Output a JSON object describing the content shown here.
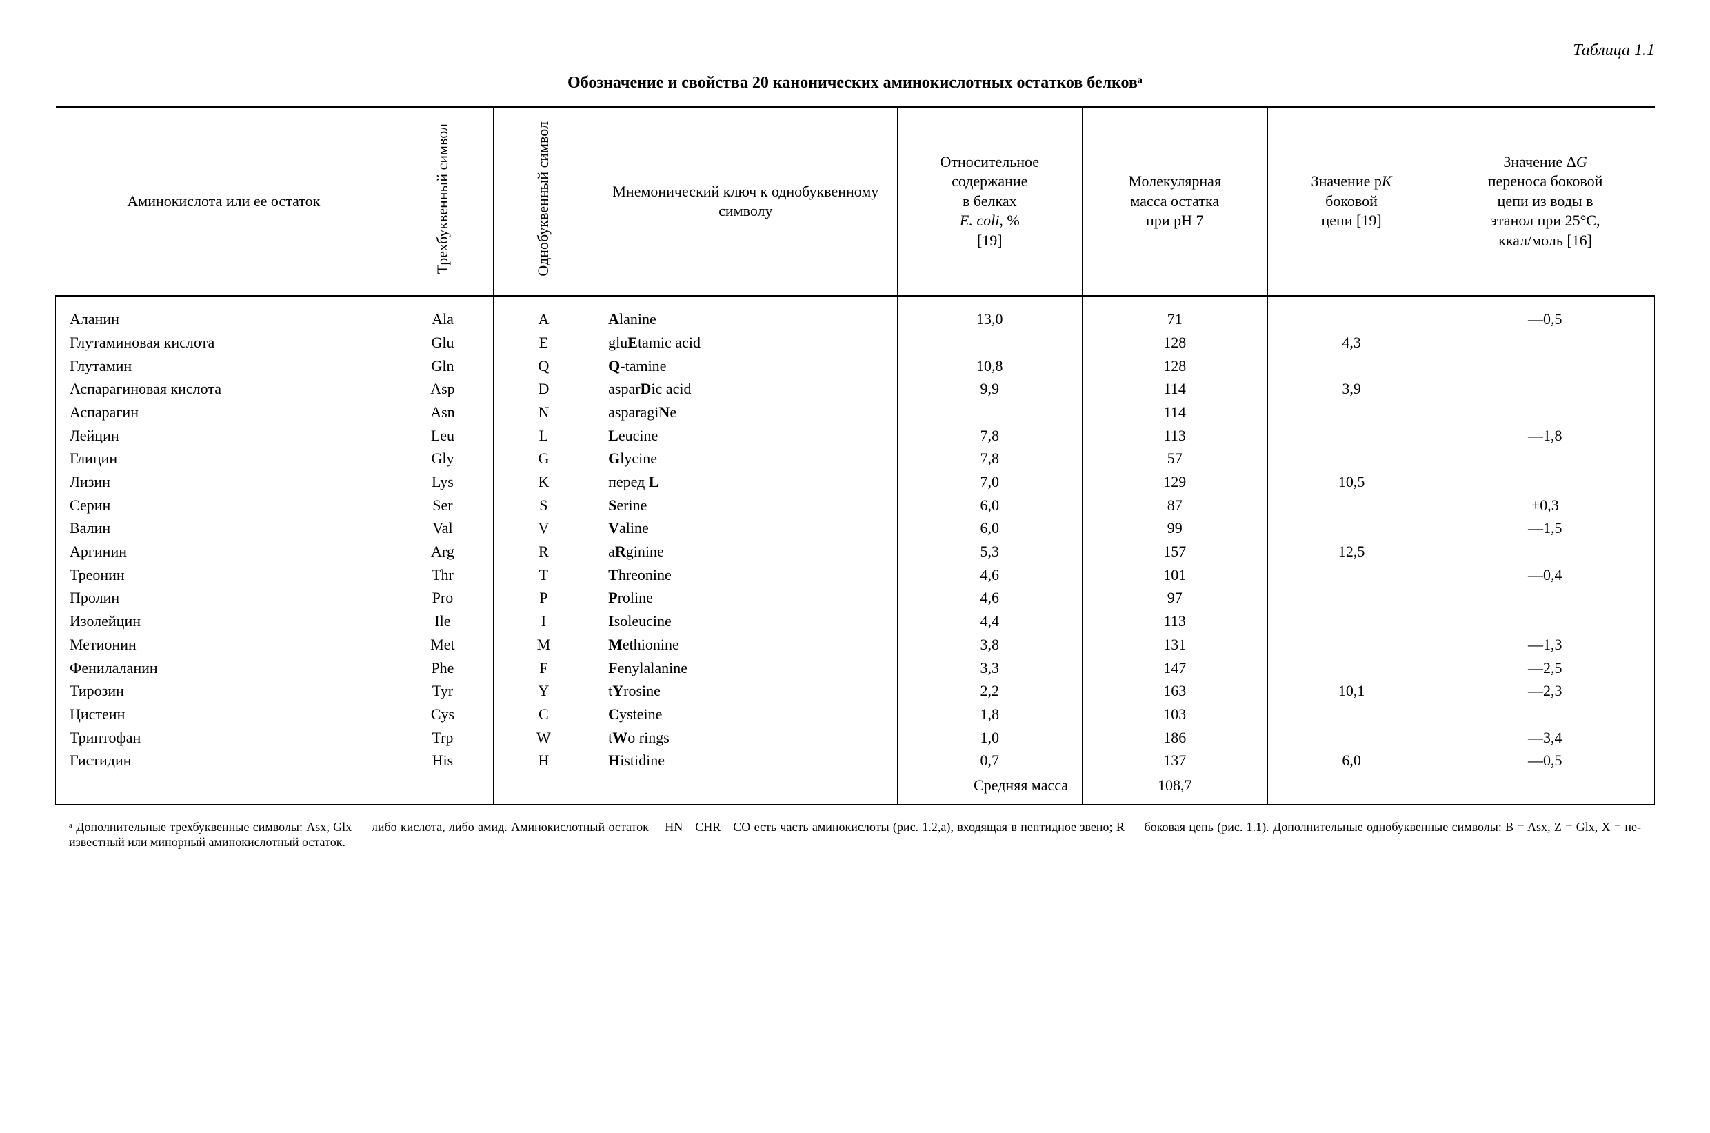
{
  "table_label": "Таблица 1.1",
  "caption": "Обозначение и свойства 20 канонических аминокислотных остатков белковᵃ",
  "headers": {
    "amino": "Аминокислота или ее остаток",
    "three": "Трехбуквенный символ",
    "one": "Однобуквенный символ",
    "mnem": "Мнемонический ключ к одно­буквенному символу",
    "rel_line1": "Относительное",
    "rel_line2": "содержание",
    "rel_line3": "в белках",
    "rel_line4_html": "<span class=\"italic\">E. coli</span>, %",
    "rel_line5": "[19]",
    "mass_line1": "Молекулярная",
    "mass_line2": "масса остатка",
    "mass_line3": "при pH 7",
    "pk_line1": "Значение р<span class=\"italic\">K</span>",
    "pk_line2": "боковой",
    "pk_line3": "цепи [19]",
    "dg_line1": "Значение Δ<span class=\"italic\">G</span>",
    "dg_line2": "переноса боковой",
    "dg_line3": "цепи из воды в",
    "dg_line4": "этанол при 25°C,",
    "dg_line5": "ккал/моль [16]"
  },
  "rows": [
    {
      "amino": "Аланин",
      "three": "Ala",
      "one": "A",
      "mnem": "<b>A</b>lanine",
      "rel": "13,0",
      "mass": "71",
      "pk": "",
      "dg": "—0,5"
    },
    {
      "amino": "Глутаминовая кислота",
      "three": "Glu",
      "one": "E",
      "mnem": "glu<b>E</b>tamic acid",
      "rel": "",
      "mass": "128",
      "pk": "4,3",
      "dg": ""
    },
    {
      "amino": "Глутамин",
      "three": "Gln",
      "one": "Q",
      "mnem": "<b>Q</b>-tamine",
      "rel": "10,8",
      "mass": "128",
      "pk": "",
      "dg": ""
    },
    {
      "amino": "Аспарагиновая кислота",
      "three": "Asp",
      "one": "D",
      "mnem": "aspar<b>D</b>ic acid",
      "rel": "9,9",
      "mass": "114",
      "pk": "3,9",
      "dg": ""
    },
    {
      "amino": "Аспарагин",
      "three": "Asn",
      "one": "N",
      "mnem": "asparagi<b>N</b>e",
      "rel": "",
      "mass": "114",
      "pk": "",
      "dg": ""
    },
    {
      "amino": "Лейцин",
      "three": "Leu",
      "one": "L",
      "mnem": "<b>L</b>eucine",
      "rel": "7,8",
      "mass": "113",
      "pk": "",
      "dg": "—1,8"
    },
    {
      "amino": "Глицин",
      "three": "Gly",
      "one": "G",
      "mnem": "<b>G</b>lycine",
      "rel": "7,8",
      "mass": "57",
      "pk": "",
      "dg": ""
    },
    {
      "amino": "Лизин",
      "three": "Lys",
      "one": "K",
      "mnem": "перед <b>L</b>",
      "rel": "7,0",
      "mass": "129",
      "pk": "10,5",
      "dg": ""
    },
    {
      "amino": "Серин",
      "three": "Ser",
      "one": "S",
      "mnem": "<b>S</b>erine",
      "rel": "6,0",
      "mass": "87",
      "pk": "",
      "dg": "+0,3"
    },
    {
      "amino": "Валин",
      "three": "Val",
      "one": "V",
      "mnem": "<b>V</b>aline",
      "rel": "6,0",
      "mass": "99",
      "pk": "",
      "dg": "—1,5"
    },
    {
      "amino": "Аргинин",
      "three": "Arg",
      "one": "R",
      "mnem": "a<b>R</b>ginine",
      "rel": "5,3",
      "mass": "157",
      "pk": "12,5",
      "dg": ""
    },
    {
      "amino": "Треонин",
      "three": "Thr",
      "one": "T",
      "mnem": "<b>T</b>hreonine",
      "rel": "4,6",
      "mass": "101",
      "pk": "",
      "dg": "—0,4"
    },
    {
      "amino": "Пролин",
      "three": "Pro",
      "one": "P",
      "mnem": "<b>P</b>roline",
      "rel": "4,6",
      "mass": "97",
      "pk": "",
      "dg": ""
    },
    {
      "amino": "Изолейцин",
      "three": "Ile",
      "one": "I",
      "mnem": "<b>I</b>soleucine",
      "rel": "4,4",
      "mass": "113",
      "pk": "",
      "dg": ""
    },
    {
      "amino": "Метионин",
      "three": "Met",
      "one": "M",
      "mnem": "<b>M</b>ethionine",
      "rel": "3,8",
      "mass": "131",
      "pk": "",
      "dg": "—1,3"
    },
    {
      "amino": "Фенилаланин",
      "three": "Phe",
      "one": "F",
      "mnem": "<b>F</b>enylalanine",
      "rel": "3,3",
      "mass": "147",
      "pk": "",
      "dg": "—2,5"
    },
    {
      "amino": "Тирозин",
      "three": "Tyr",
      "one": "Y",
      "mnem": "t<b>Y</b>rosine",
      "rel": "2,2",
      "mass": "163",
      "pk": "10,1",
      "dg": "—2,3"
    },
    {
      "amino": "Цистеин",
      "three": "Cys",
      "one": "C",
      "mnem": "<b>C</b>ysteine",
      "rel": "1,8",
      "mass": "103",
      "pk": "",
      "dg": ""
    },
    {
      "amino": "Триптофан",
      "three": "Trp",
      "one": "W",
      "mnem": "t<b>W</b>o rings",
      "rel": "1,0",
      "mass": "186",
      "pk": "",
      "dg": "—3,4"
    },
    {
      "amino": "Гистидин",
      "three": "His",
      "one": "H",
      "mnem": "<b>H</b>istidine",
      "rel": "0,7",
      "mass": "137",
      "pk": "6,0",
      "dg": "—0,5"
    }
  ],
  "avg_label": "Средняя масса",
  "avg_value": "108,7",
  "footnote": "ᵃ Дополнительные трехбуквенные символы: Asx, Glx — либо кислота, либо амид. Аминокислотный остаток —HN—CHR—CO есть часть аминокислоты (рис. 1.2,а), входящая в пептидное звено; R — боковая цепь (рис. 1.1). Дополнительные однобуквенные символы: B = Asx, Z = Glx, X = не­известный или минорный аминокислотный остаток."
}
